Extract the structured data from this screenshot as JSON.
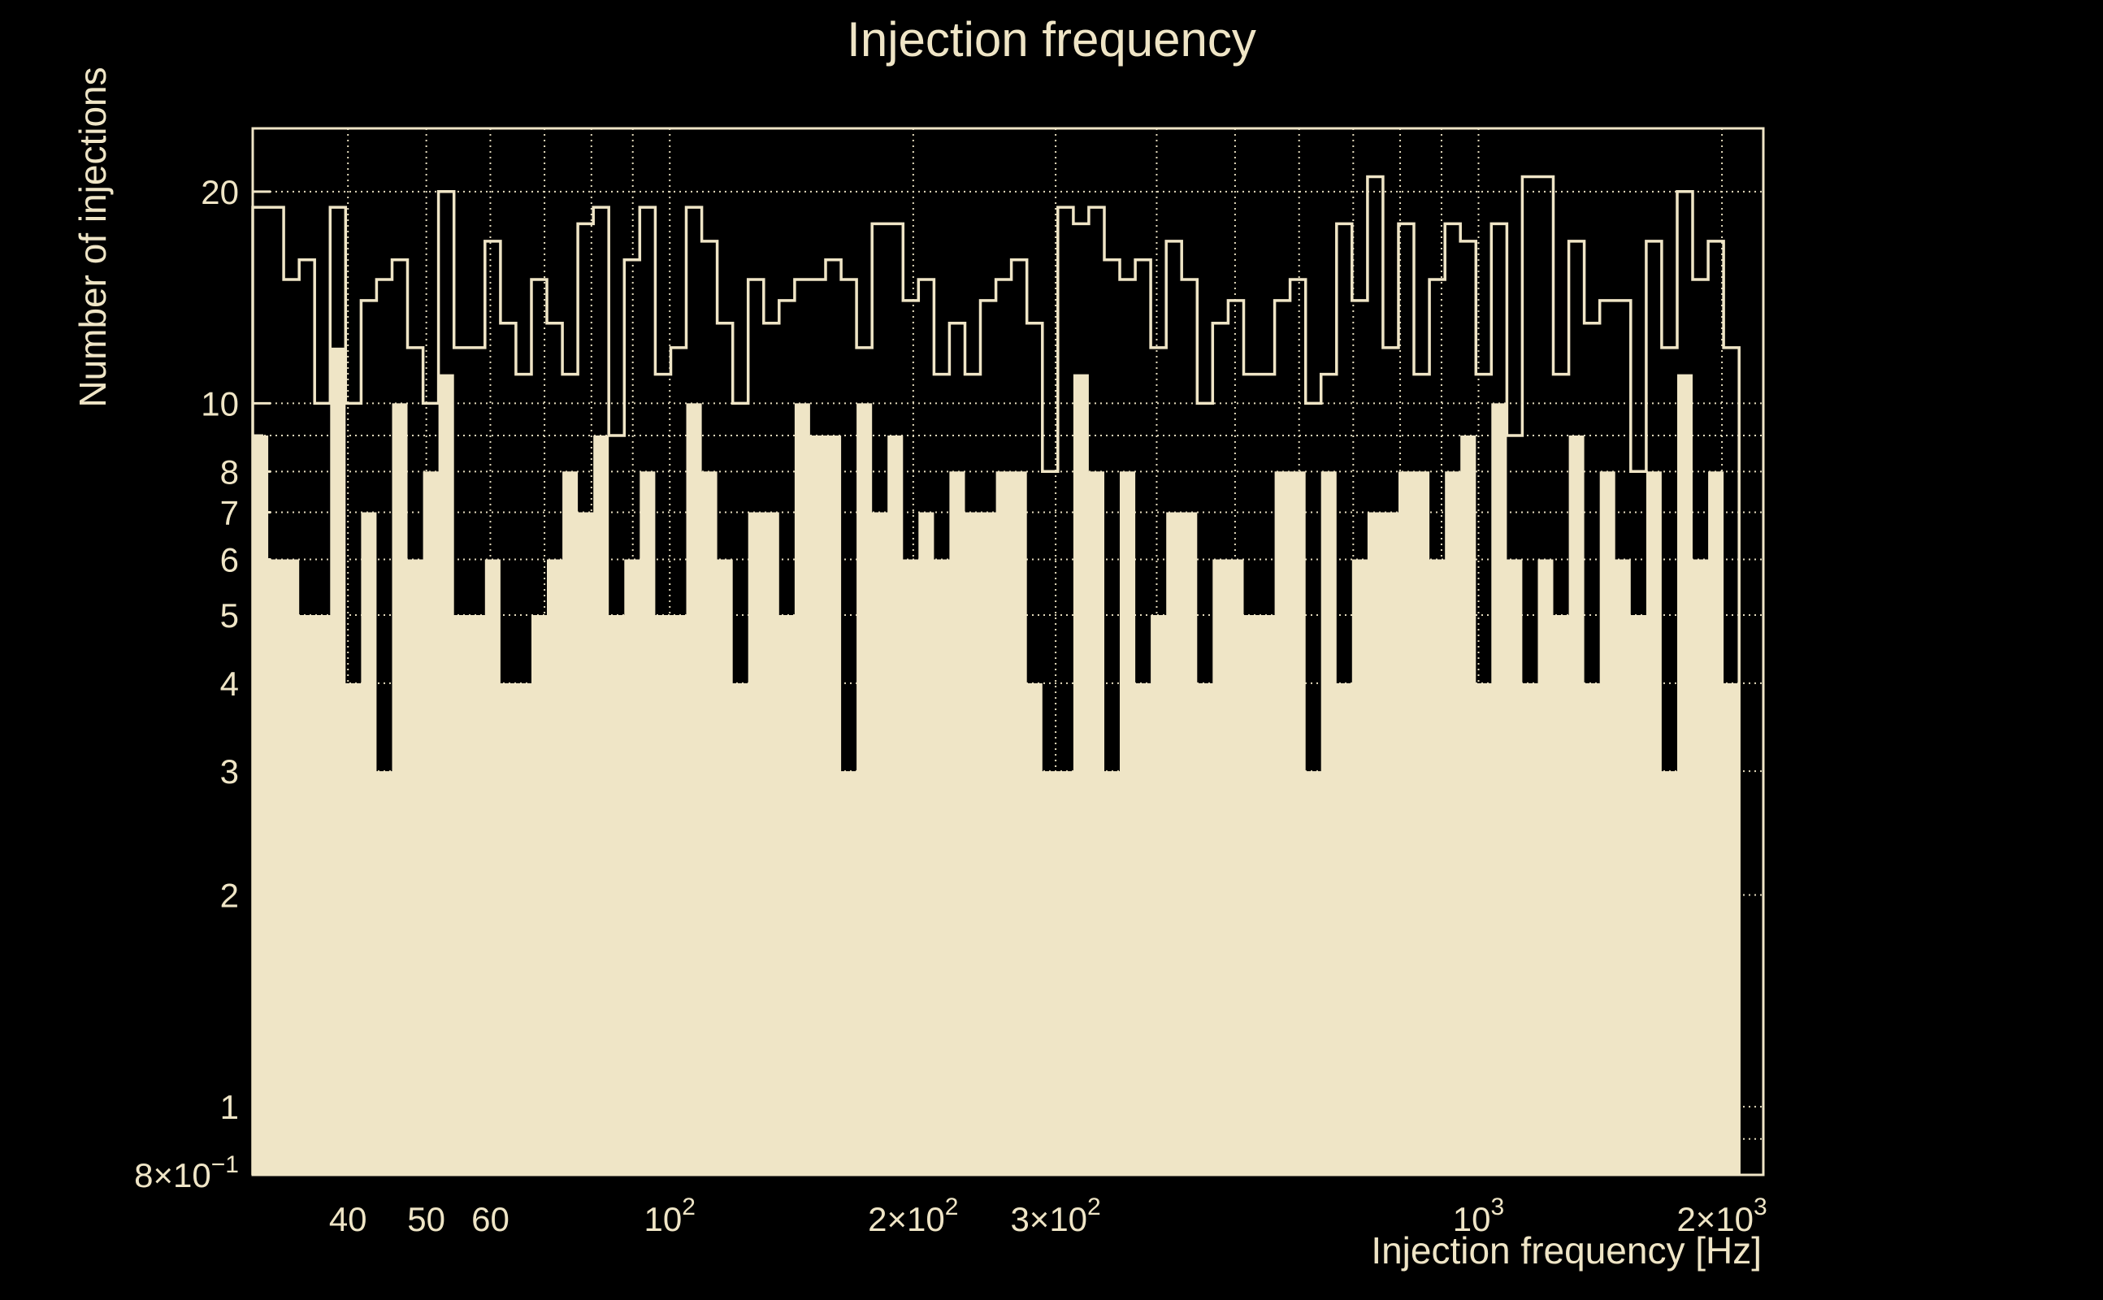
{
  "colors": {
    "background": "#000000",
    "foreground": "#efe5c6"
  },
  "chart_data": {
    "type": "histogram-step-log-log",
    "title": "Injection frequency",
    "xlabel": "Injection frequency [Hz]",
    "ylabel": "Number of injections",
    "x_scale": "log",
    "y_scale": "log",
    "x_range_hz": [
      30.5,
      2250
    ],
    "y_range": [
      0.8,
      24.6
    ],
    "grid": "dotted",
    "legend_position": "none",
    "bins": {
      "count": 96,
      "first_edge_hz": 30.5,
      "last_edge_hz": 2100,
      "spacing": "log-uniform"
    },
    "series": [
      {
        "name": "outline-histogram",
        "style": "step-outline",
        "values": [
          19,
          19,
          15,
          16,
          10,
          19,
          10,
          14,
          15,
          16,
          12,
          10,
          20,
          12,
          12,
          17,
          13,
          11,
          15,
          13,
          11,
          18,
          19,
          9,
          16,
          19,
          11,
          12,
          19,
          17,
          13,
          10,
          15,
          13,
          14,
          15,
          15,
          16,
          15,
          12,
          18,
          18,
          14,
          15,
          11,
          13,
          11,
          14,
          15,
          16,
          13,
          8,
          19,
          18,
          19,
          16,
          15,
          16,
          12,
          17,
          15,
          10,
          13,
          14,
          11,
          11,
          14,
          15,
          10,
          11,
          18,
          14,
          21,
          12,
          18,
          11,
          15,
          18,
          17,
          11,
          18,
          9,
          21,
          21,
          11,
          17,
          13,
          14,
          14,
          8,
          17,
          12,
          20,
          15,
          17,
          12
        ]
      },
      {
        "name": "filled-histogram",
        "style": "filled",
        "values": [
          9,
          6,
          6,
          5,
          5,
          12,
          4,
          7,
          3,
          10,
          6,
          8,
          11,
          5,
          5,
          6,
          4,
          4,
          5,
          6,
          8,
          7,
          9,
          5,
          6,
          8,
          5,
          5,
          10,
          8,
          6,
          4,
          7,
          7,
          5,
          10,
          9,
          9,
          3,
          10,
          7,
          9,
          6,
          7,
          6,
          8,
          7,
          7,
          8,
          8,
          4,
          3,
          3,
          11,
          8,
          3,
          8,
          4,
          5,
          7,
          7,
          4,
          6,
          6,
          5,
          5,
          8,
          8,
          3,
          8,
          4,
          6,
          7,
          7,
          8,
          8,
          6,
          8,
          9,
          4,
          10,
          6,
          4,
          6,
          5,
          9,
          4,
          8,
          6,
          5,
          8,
          3,
          11,
          6,
          8,
          4
        ]
      }
    ],
    "x_ticks": [
      {
        "v": 40,
        "label": "40",
        "sup": ""
      },
      {
        "v": 50,
        "label": "50",
        "sup": ""
      },
      {
        "v": 60,
        "label": "60",
        "sup": ""
      },
      {
        "v": 100,
        "label": "10",
        "sup": "2"
      },
      {
        "v": 200,
        "label": "2×10",
        "sup": "2"
      },
      {
        "v": 300,
        "label": "3×10",
        "sup": "2"
      },
      {
        "v": 1000,
        "label": "10",
        "sup": "3"
      },
      {
        "v": 2000,
        "label": "2×10",
        "sup": "3"
      }
    ],
    "x_minor_ticks": [
      40,
      50,
      60,
      70,
      80,
      90,
      100,
      200,
      300,
      400,
      500,
      600,
      700,
      800,
      900,
      1000,
      2000
    ],
    "y_ticks": [
      {
        "v": 20,
        "label": "20",
        "sup": ""
      },
      {
        "v": 10,
        "label": "10",
        "sup": ""
      },
      {
        "v": 8,
        "label": "8",
        "sup": ""
      },
      {
        "v": 7,
        "label": "7",
        "sup": ""
      },
      {
        "v": 6,
        "label": "6",
        "sup": ""
      },
      {
        "v": 5,
        "label": "5",
        "sup": ""
      },
      {
        "v": 4,
        "label": "4",
        "sup": ""
      },
      {
        "v": 3,
        "label": "3",
        "sup": ""
      },
      {
        "v": 2,
        "label": "2",
        "sup": ""
      },
      {
        "v": 1,
        "label": "1",
        "sup": ""
      },
      {
        "v": 0.8,
        "label": "8×10",
        "sup": "−1"
      }
    ],
    "y_minor_ticks": [
      0.8,
      0.9,
      1,
      2,
      3,
      4,
      5,
      6,
      7,
      8,
      9,
      10,
      20
    ]
  }
}
